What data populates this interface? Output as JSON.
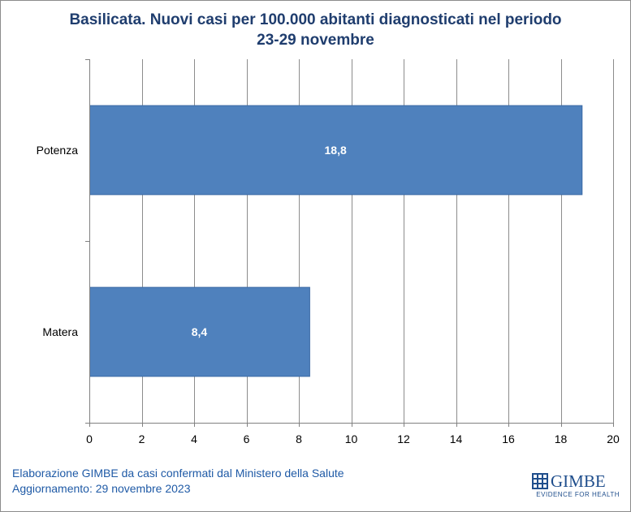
{
  "chart_data": {
    "type": "bar",
    "orientation": "horizontal",
    "title_lines": [
      "Basilicata. Nuovi casi per 100.000 abitanti diagnosticati nel periodo",
      "23-29 novembre"
    ],
    "categories": [
      "Potenza",
      "Matera"
    ],
    "values": [
      18.8,
      8.4
    ],
    "value_labels": [
      "18,8",
      "8,4"
    ],
    "xlim": [
      0,
      20
    ],
    "xticks": [
      0,
      2,
      4,
      6,
      8,
      10,
      12,
      14,
      16,
      18,
      20
    ],
    "grid": "vertical",
    "legend": "none",
    "bar_color": "#4f81bd",
    "bar_border_color": "#3a6aa5"
  },
  "footer": {
    "line1": "Elaborazione GIMBE da casi confermati dal Ministero della Salute",
    "line2": "Aggiornamento: 29 novembre 2023"
  },
  "logo": {
    "name": "GIMBE",
    "tagline": "EVIDENCE FOR HEALTH",
    "icon": "gimbe-logo-icon"
  },
  "colors": {
    "title": "#1f3d6e",
    "footer": "#1f5aa6",
    "grid": "#8c8c8c"
  }
}
